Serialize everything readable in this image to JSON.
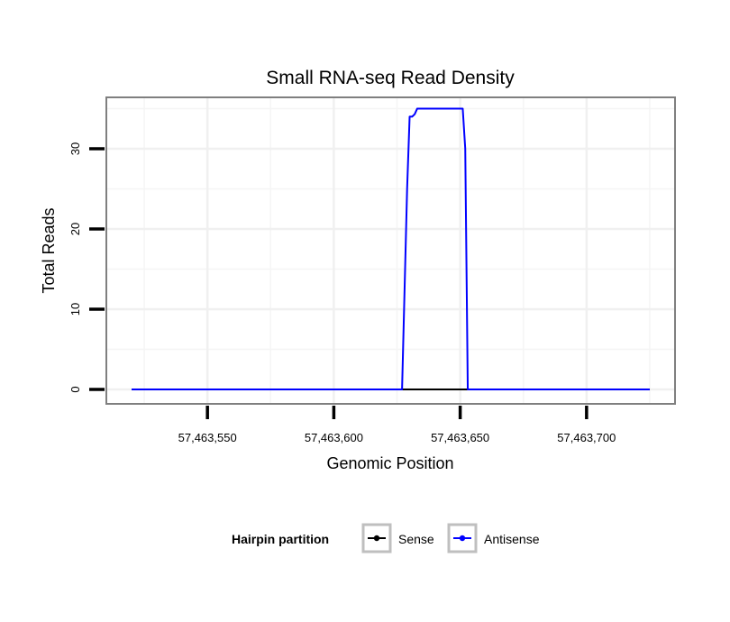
{
  "chart_data": {
    "type": "line",
    "title": "Small RNA-seq Read Density",
    "xlabel": "Genomic Position",
    "ylabel": "Total Reads",
    "xlim": [
      57463510,
      57463735
    ],
    "ylim": [
      -1.8,
      36.4
    ],
    "x_ticks": [
      57463550,
      57463600,
      57463650,
      57463700
    ],
    "x_tick_labels": [
      "57,463,550",
      "57,463,600",
      "57,463,650",
      "57,463,700"
    ],
    "y_ticks": [
      0,
      10,
      20,
      30
    ],
    "y_tick_labels": [
      "0",
      "10",
      "20",
      "30"
    ],
    "grid": true,
    "legend": {
      "title": "Hairpin partition",
      "position": "bottom",
      "entries": [
        {
          "name": "Sense",
          "color": "#000000"
        },
        {
          "name": "Antisense",
          "color": "#0000ff"
        }
      ]
    },
    "series": [
      {
        "name": "Sense",
        "color": "#000000",
        "x": [
          57463520,
          57463725
        ],
        "y": [
          0,
          0
        ]
      },
      {
        "name": "Antisense",
        "color": "#0000ff",
        "x": [
          57463520,
          57463627,
          57463629,
          57463630,
          57463631,
          57463632,
          57463633,
          57463634,
          57463651,
          57463652,
          57463653,
          57463725
        ],
        "y": [
          0,
          0,
          25,
          34,
          34,
          34.3,
          35,
          35,
          35,
          30,
          0,
          0
        ]
      }
    ]
  }
}
